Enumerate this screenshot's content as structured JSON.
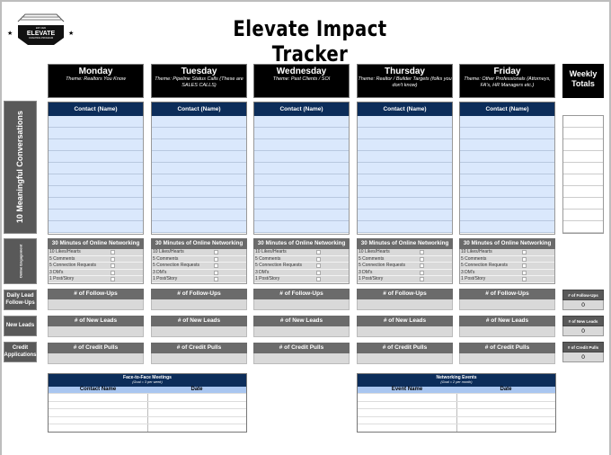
{
  "header": {
    "title": "Elevate Impact Tracker",
    "logo_text": "ELEVATE",
    "logo_subtext": "COACHING PROGRAM",
    "logo_toptext": "EST 2020"
  },
  "side_labels": [
    "10 Meaningful Conversations",
    "Online Engagement",
    "Daily Lead Follow-Ups",
    "New Leads",
    "Credit Applications"
  ],
  "days": [
    {
      "name": "Monday",
      "theme": "Theme: Realtors You Know"
    },
    {
      "name": "Tuesday",
      "theme": "Theme: Pipeline Status Calls (These are SALES CALLS)"
    },
    {
      "name": "Wednesday",
      "theme": "Theme: Past Clients / SOI"
    },
    {
      "name": "Thursday",
      "theme": "Theme: Realtor / Builder Targets (folks you don't know)"
    },
    {
      "name": "Friday",
      "theme": "Theme: Other Professionals (Attorneys, FA's, HR Managers etc.)"
    }
  ],
  "contact_header": "Contact (Name)",
  "networking": {
    "header": "30 Minutes of Online Networking",
    "items": [
      "10 Likes/Hearts",
      "5 Comments",
      "5 Connection Requests",
      "3 DM's",
      "1 Post/Story"
    ]
  },
  "metrics": [
    "# of Follow-Ups",
    "# of New Leads",
    "# of Credit Pulls"
  ],
  "weekly": {
    "title": "Weekly Totals",
    "metrics": [
      {
        "label": "# of Follow-Ups",
        "value": "0"
      },
      {
        "label": "# of New Leads",
        "value": "0"
      },
      {
        "label": "# of Credit Pulls",
        "value": "0"
      }
    ]
  },
  "tables": [
    {
      "title": "Face-to-Face Meetings",
      "goal": "(Goal = 3 per week)",
      "columns": [
        "Contact Name",
        "Date"
      ]
    },
    {
      "title": "Networking Events",
      "goal": "(Goal = 2 per month)",
      "columns": [
        "Event Name",
        "Date"
      ]
    }
  ],
  "colors": {
    "navy": "#0c2d5a",
    "contact_fill": "#dae8fc",
    "gray_header": "#6b6b6b",
    "field_gray": "#d9d9d9"
  }
}
